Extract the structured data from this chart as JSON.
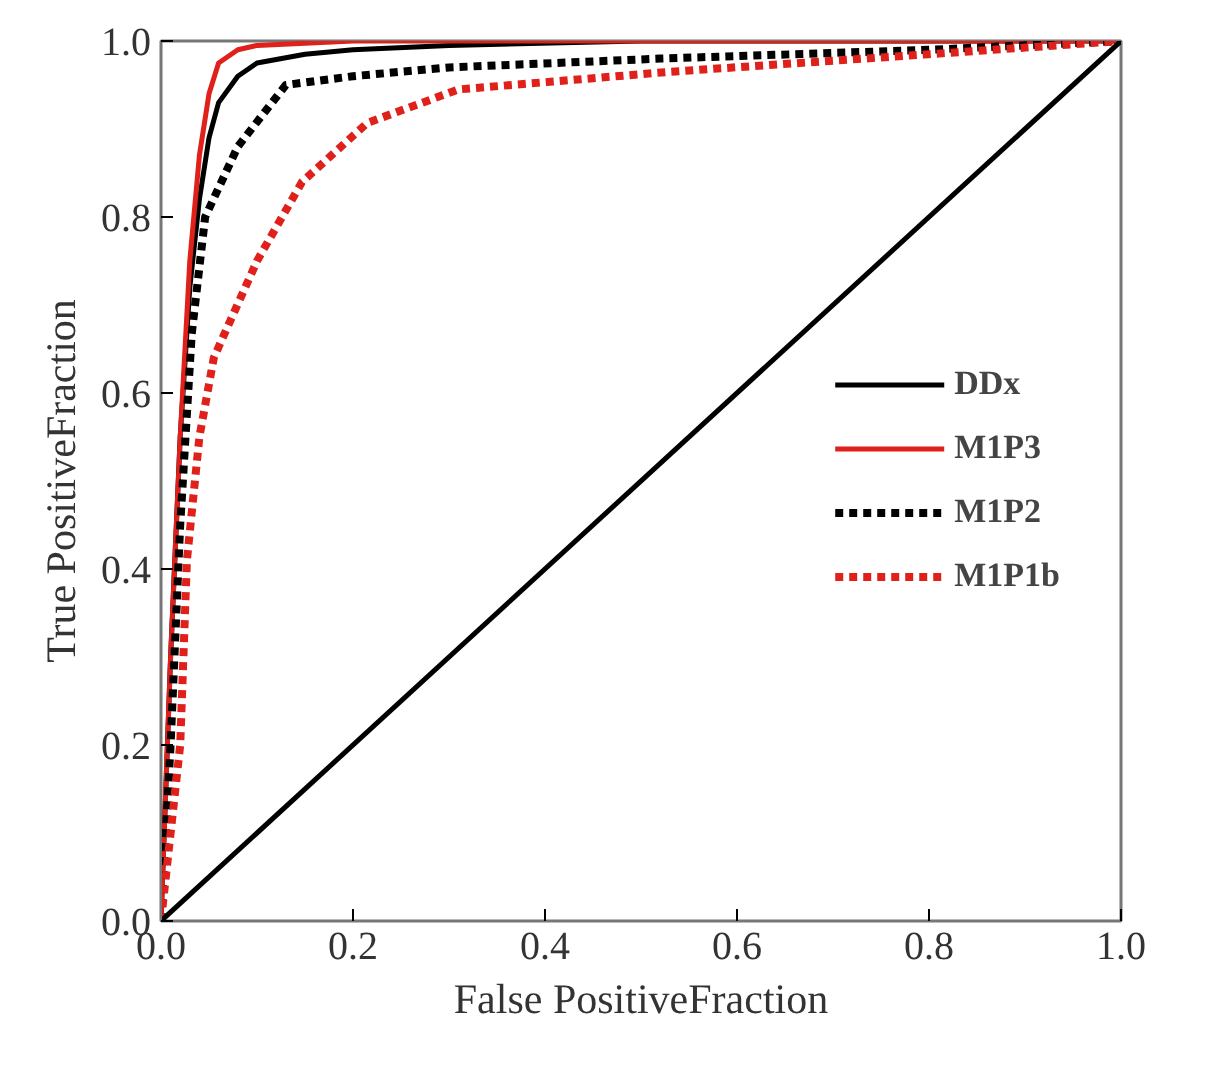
{
  "chart_data": {
    "type": "line",
    "xlabel": "False PositiveFraction",
    "ylabel": "True PositiveFraction",
    "xlim": [
      0,
      1
    ],
    "ylim": [
      0,
      1
    ],
    "xticks": [
      {
        "value": 0,
        "label": "0.0"
      },
      {
        "value": 0.2,
        "label": "0.2"
      },
      {
        "value": 0.4,
        "label": "0.4"
      },
      {
        "value": 0.6,
        "label": "0.6"
      },
      {
        "value": 0.8,
        "label": "0.8"
      },
      {
        "value": 1,
        "label": "1.0"
      }
    ],
    "yticks": [
      {
        "value": 0,
        "label": "0.0"
      },
      {
        "value": 0.2,
        "label": "0.2"
      },
      {
        "value": 0.4,
        "label": "0.4"
      },
      {
        "value": 0.6,
        "label": "0.6"
      },
      {
        "value": 0.8,
        "label": "0.8"
      },
      {
        "value": 1,
        "label": "1.0"
      }
    ],
    "grid": false,
    "legend": "right",
    "marker": "none",
    "series": [
      {
        "name": "DDx",
        "color": "#000000",
        "line_style": "solid",
        "x": [
          0,
          0.01,
          0.02,
          0.03,
          0.04,
          0.05,
          0.06,
          0.08,
          0.1,
          0.15,
          0.2,
          0.3,
          0.5,
          1
        ],
        "values": [
          0,
          0.3,
          0.55,
          0.72,
          0.82,
          0.89,
          0.93,
          0.96,
          0.975,
          0.985,
          0.99,
          0.995,
          1,
          1
        ]
      },
      {
        "name": "M1P3",
        "color": "#e0201a",
        "line_style": "solid",
        "x": [
          0,
          0.01,
          0.02,
          0.03,
          0.04,
          0.05,
          0.06,
          0.08,
          0.1,
          0.2,
          1
        ],
        "values": [
          0,
          0.3,
          0.55,
          0.75,
          0.87,
          0.94,
          0.975,
          0.99,
          0.995,
          1,
          1
        ]
      },
      {
        "name": "M1P2",
        "color": "#000000",
        "line_style": "dashed",
        "x": [
          0,
          0.01,
          0.02,
          0.032,
          0.046,
          0.08,
          0.13,
          0.2,
          0.3,
          0.52,
          0.8,
          1
        ],
        "values": [
          0,
          0.2,
          0.45,
          0.667,
          0.8,
          0.88,
          0.95,
          0.96,
          0.97,
          0.98,
          0.99,
          1
        ]
      },
      {
        "name": "M1P1b",
        "color": "#e0201a",
        "line_style": "dashed",
        "x": [
          0,
          0.01,
          0.02,
          0.027,
          0.04,
          0.055,
          0.1,
          0.147,
          0.215,
          0.31,
          0.53,
          0.8,
          1
        ],
        "values": [
          0,
          0.1,
          0.2,
          0.41,
          0.55,
          0.64,
          0.75,
          0.84,
          0.907,
          0.945,
          0.965,
          0.985,
          1
        ]
      },
      {
        "color": "#000000",
        "line_style": "solid",
        "x": [
          0,
          1
        ],
        "values": [
          0,
          1
        ]
      }
    ]
  }
}
